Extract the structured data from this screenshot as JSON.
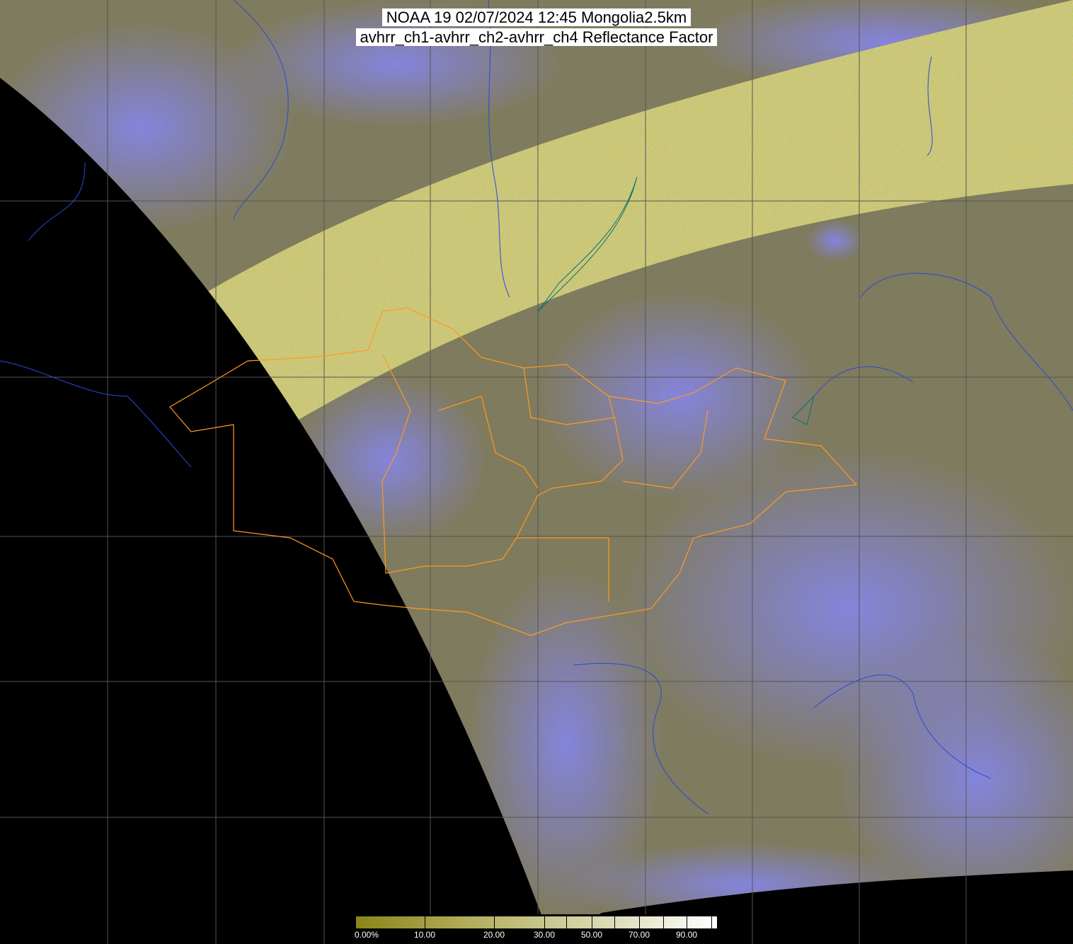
{
  "title": {
    "line1": "NOAA 19 02/07/2024 12:45 Mongolia2.5km",
    "line2": "avhrr_ch1-avhrr_ch2-avhrr_ch4 Reflectance Factor"
  },
  "colorbar": {
    "labels": [
      "0.00%",
      "10.00",
      "20.00",
      "30.00",
      "50.00",
      "70.00",
      "90.00"
    ],
    "colors": [
      "#8a8518",
      "#b4b060",
      "#d8d8b0",
      "#ffffff"
    ]
  },
  "map": {
    "land_color": "#7f7b5e",
    "cloud_color": "#8585e8",
    "noise_band_color": "#d8d070",
    "no_data_color": "#000000",
    "grid_color": "#555555",
    "border_color": "#ff9a20",
    "coast_color": "#2a4ad8"
  }
}
